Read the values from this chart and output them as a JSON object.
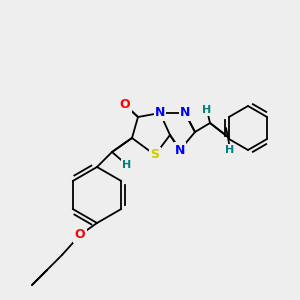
{
  "bg_color": "#eeeeee",
  "atom_colors": {
    "O": "#ff0000",
    "N": "#0000ff",
    "S": "#cccc00",
    "H": "#008080",
    "C": "#000000"
  },
  "bond_color": "#000000",
  "bond_width": 1.3,
  "dbo": 0.01,
  "fig_w": 3.0,
  "fig_h": 3.0,
  "dpi": 100
}
